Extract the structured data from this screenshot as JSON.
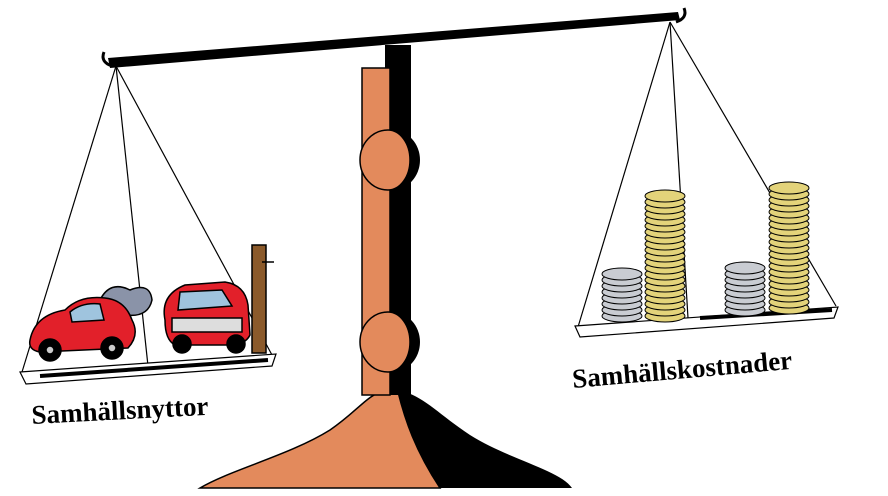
{
  "labels": {
    "left": "Samhällsnyttor",
    "right": "Samhällskostnader"
  }
}
